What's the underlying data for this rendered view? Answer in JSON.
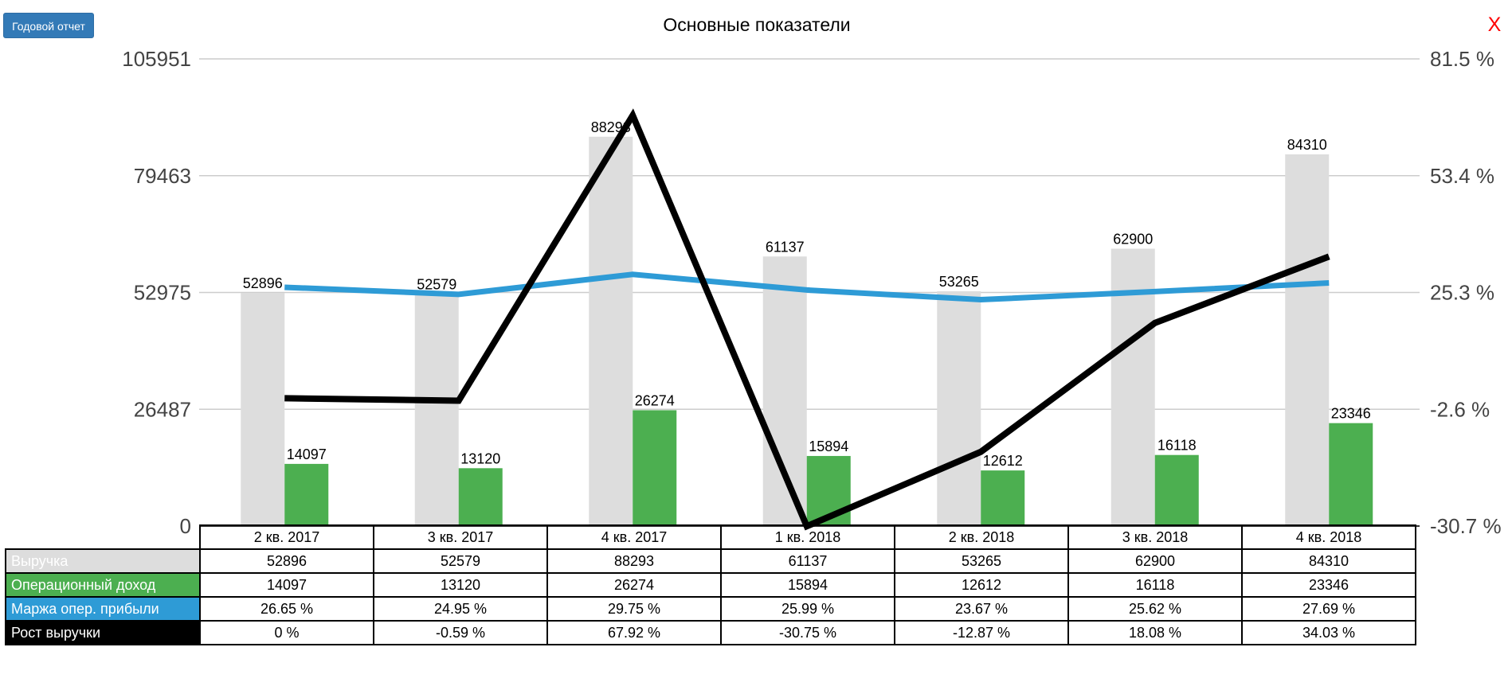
{
  "toolbar": {
    "annual_report_label": "Годовой отчет",
    "close_label": "X"
  },
  "chart_data": {
    "type": "bar",
    "title": "Основные показатели",
    "categories": [
      "2 кв. 2017",
      "3 кв. 2017",
      "4 кв. 2017",
      "1 кв. 2018",
      "2 кв. 2018",
      "3 кв. 2018",
      "4 кв. 2018"
    ],
    "y_left": {
      "ticks": [
        "105951",
        "79463",
        "52975",
        "26487",
        "0"
      ],
      "min": 0,
      "max": 105951
    },
    "y_right": {
      "ticks": [
        "81.5 %",
        "53.4 %",
        "25.3 %",
        "-2.6 %",
        "-30.7 %"
      ],
      "min": -30.7,
      "max": 81.5
    },
    "grid": true,
    "series": [
      {
        "name": "Выручка",
        "type": "bar",
        "axis": "left",
        "color": "#dddddd",
        "values": [
          52896,
          52579,
          88293,
          61137,
          53265,
          62900,
          84310
        ],
        "labels": [
          "52896",
          "52579",
          "88293",
          "61137",
          "53265",
          "62900",
          "84310"
        ]
      },
      {
        "name": "Операционный доход",
        "type": "bar",
        "axis": "left",
        "color": "#4caf50",
        "values": [
          14097,
          13120,
          26274,
          15894,
          12612,
          16118,
          23346
        ],
        "labels": [
          "14097",
          "13120",
          "26274",
          "15894",
          "12612",
          "16118",
          "23346"
        ]
      },
      {
        "name": "Маржа опер. прибыли",
        "type": "line",
        "axis": "right",
        "color": "#2e9bd6",
        "values": [
          26.65,
          24.95,
          29.75,
          25.99,
          23.67,
          25.62,
          27.69
        ],
        "labels": [
          "26.65 %",
          "24.95 %",
          "29.75 %",
          "25.99 %",
          "23.67 %",
          "25.62 %",
          "27.69 %"
        ]
      },
      {
        "name": "Рост выручки",
        "type": "line",
        "axis": "right",
        "color": "#000000",
        "values": [
          0,
          -0.59,
          67.92,
          -30.75,
          -12.87,
          18.08,
          34.03
        ],
        "labels": [
          "0 %",
          "-0.59 %",
          "67.92 %",
          "-30.75 %",
          "-12.87 %",
          "18.08 %",
          "34.03 %"
        ]
      }
    ]
  },
  "table": {
    "label_text_colors": [
      "#ffffff",
      "#ffffff",
      "#ffffff",
      "#ffffff"
    ]
  }
}
